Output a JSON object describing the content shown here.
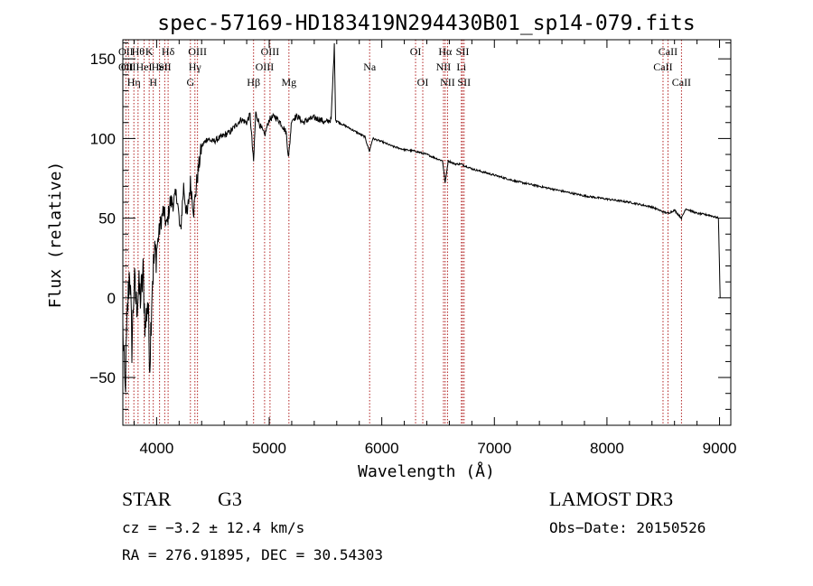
{
  "chart_data": {
    "type": "line",
    "title": "spec-57169-HD183419N294430B01_sp14-079.fits",
    "xlabel": "Wavelength (Å)",
    "ylabel": "Flux (relative)",
    "xlim": [
      3700,
      9100
    ],
    "ylim": [
      -80,
      162
    ],
    "x_ticks": [
      4000,
      5000,
      6000,
      7000,
      8000,
      9000
    ],
    "y_ticks": [
      -50,
      0,
      50,
      100,
      150
    ],
    "series": [
      {
        "name": "flux",
        "x": [
          3700,
          3720,
          3740,
          3760,
          3780,
          3800,
          3820,
          3840,
          3860,
          3880,
          3900,
          3920,
          3940,
          3960,
          3980,
          4000,
          4030,
          4060,
          4090,
          4120,
          4150,
          4180,
          4210,
          4240,
          4270,
          4300,
          4330,
          4360,
          4400,
          4450,
          4500,
          4550,
          4600,
          4650,
          4700,
          4750,
          4800,
          4830,
          4861,
          4880,
          4920,
          4960,
          5000,
          5050,
          5100,
          5150,
          5172,
          5200,
          5250,
          5300,
          5350,
          5400,
          5450,
          5500,
          5550,
          5578,
          5590,
          5620,
          5700,
          5800,
          5850,
          5890,
          5920,
          6000,
          6100,
          6200,
          6300,
          6400,
          6500,
          6540,
          6563,
          6590,
          6650,
          6700,
          6800,
          6900,
          7000,
          7200,
          7400,
          7600,
          7800,
          8000,
          8200,
          8400,
          8498,
          8542,
          8600,
          8662,
          8700,
          8800,
          8900,
          8950,
          8990,
          9000,
          9005
        ],
        "values": [
          -20,
          -60,
          -10,
          20,
          -30,
          10,
          -5,
          5,
          0,
          15,
          -20,
          0,
          -40,
          10,
          25,
          30,
          45,
          55,
          45,
          60,
          60,
          65,
          40,
          70,
          50,
          72,
          55,
          75,
          95,
          100,
          98,
          100,
          102,
          104,
          108,
          112,
          110,
          115,
          85,
          116,
          108,
          102,
          112,
          114,
          110,
          104,
          88,
          112,
          114,
          110,
          112,
          113,
          112,
          110,
          112,
          158,
          112,
          110,
          107,
          103,
          101,
          92,
          100,
          98,
          95,
          93,
          92,
          90,
          87,
          86,
          72,
          86,
          84,
          84,
          81,
          79,
          77,
          73,
          70,
          67,
          64,
          62,
          60,
          57,
          54,
          53,
          55,
          50,
          56,
          53,
          52,
          51,
          50,
          20,
          0
        ]
      }
    ],
    "line_markers": [
      {
        "wl": 3727,
        "lines": [
          "OII",
          "OII"
        ]
      },
      {
        "wl": 3750,
        "lines": [
          "",
          "OII"
        ]
      },
      {
        "wl": 3798,
        "lines": [
          "",
          "",
          "Hη"
        ]
      },
      {
        "wl": 3835,
        "lines": [
          "Hθ",
          "",
          ""
        ]
      },
      {
        "wl": 3889,
        "lines": [
          "",
          "HeI",
          ""
        ]
      },
      {
        "wl": 3934,
        "lines": [
          "K",
          "",
          ""
        ]
      },
      {
        "wl": 3970,
        "lines": [
          "",
          "",
          "H"
        ]
      },
      {
        "wl": 4026,
        "lines": [
          "",
          "HeI",
          ""
        ]
      },
      {
        "wl": 4072,
        "lines": [
          "",
          "SII",
          ""
        ]
      },
      {
        "wl": 4102,
        "lines": [
          "Hδ",
          "",
          ""
        ]
      },
      {
        "wl": 4300,
        "lines": [
          "",
          "",
          "G"
        ]
      },
      {
        "wl": 4340,
        "lines": [
          "",
          "Hγ",
          ""
        ]
      },
      {
        "wl": 4363,
        "lines": [
          "OIII",
          "",
          ""
        ]
      },
      {
        "wl": 4861,
        "lines": [
          "",
          "",
          "Hβ"
        ]
      },
      {
        "wl": 4959,
        "lines": [
          "",
          "OIII",
          ""
        ]
      },
      {
        "wl": 5007,
        "lines": [
          "OIII",
          "",
          ""
        ]
      },
      {
        "wl": 5175,
        "lines": [
          "",
          "",
          "Mg"
        ]
      },
      {
        "wl": 5892,
        "lines": [
          "",
          "Na",
          ""
        ]
      },
      {
        "wl": 6300,
        "lines": [
          "OI",
          "",
          ""
        ]
      },
      {
        "wl": 6364,
        "lines": [
          "",
          "",
          "OI"
        ]
      },
      {
        "wl": 6548,
        "lines": [
          "",
          "NII",
          ""
        ]
      },
      {
        "wl": 6563,
        "lines": [
          "Hα",
          "",
          ""
        ]
      },
      {
        "wl": 6584,
        "lines": [
          "",
          "",
          "NII"
        ]
      },
      {
        "wl": 6707,
        "lines": [
          "",
          "Li",
          ""
        ]
      },
      {
        "wl": 6717,
        "lines": [
          "SII",
          "",
          ""
        ]
      },
      {
        "wl": 6731,
        "lines": [
          "",
          "",
          "SII"
        ]
      },
      {
        "wl": 8498,
        "lines": [
          "",
          "CaII",
          ""
        ]
      },
      {
        "wl": 8542,
        "lines": [
          "CaII",
          "",
          ""
        ]
      },
      {
        "wl": 8662,
        "lines": [
          "",
          "",
          "CaII"
        ]
      }
    ]
  },
  "info": {
    "object_class": "STAR",
    "subclass": "G3",
    "survey": "LAMOST DR3",
    "cz": "cz = −3.2 ± 12.4 km/s",
    "obs_date": "Obs−Date: 20150526",
    "coords": "RA = 276.91895, DEC =  30.54303"
  },
  "colors": {
    "marker": "#b22222",
    "spectrum": "#000000",
    "axes": "#000000"
  }
}
